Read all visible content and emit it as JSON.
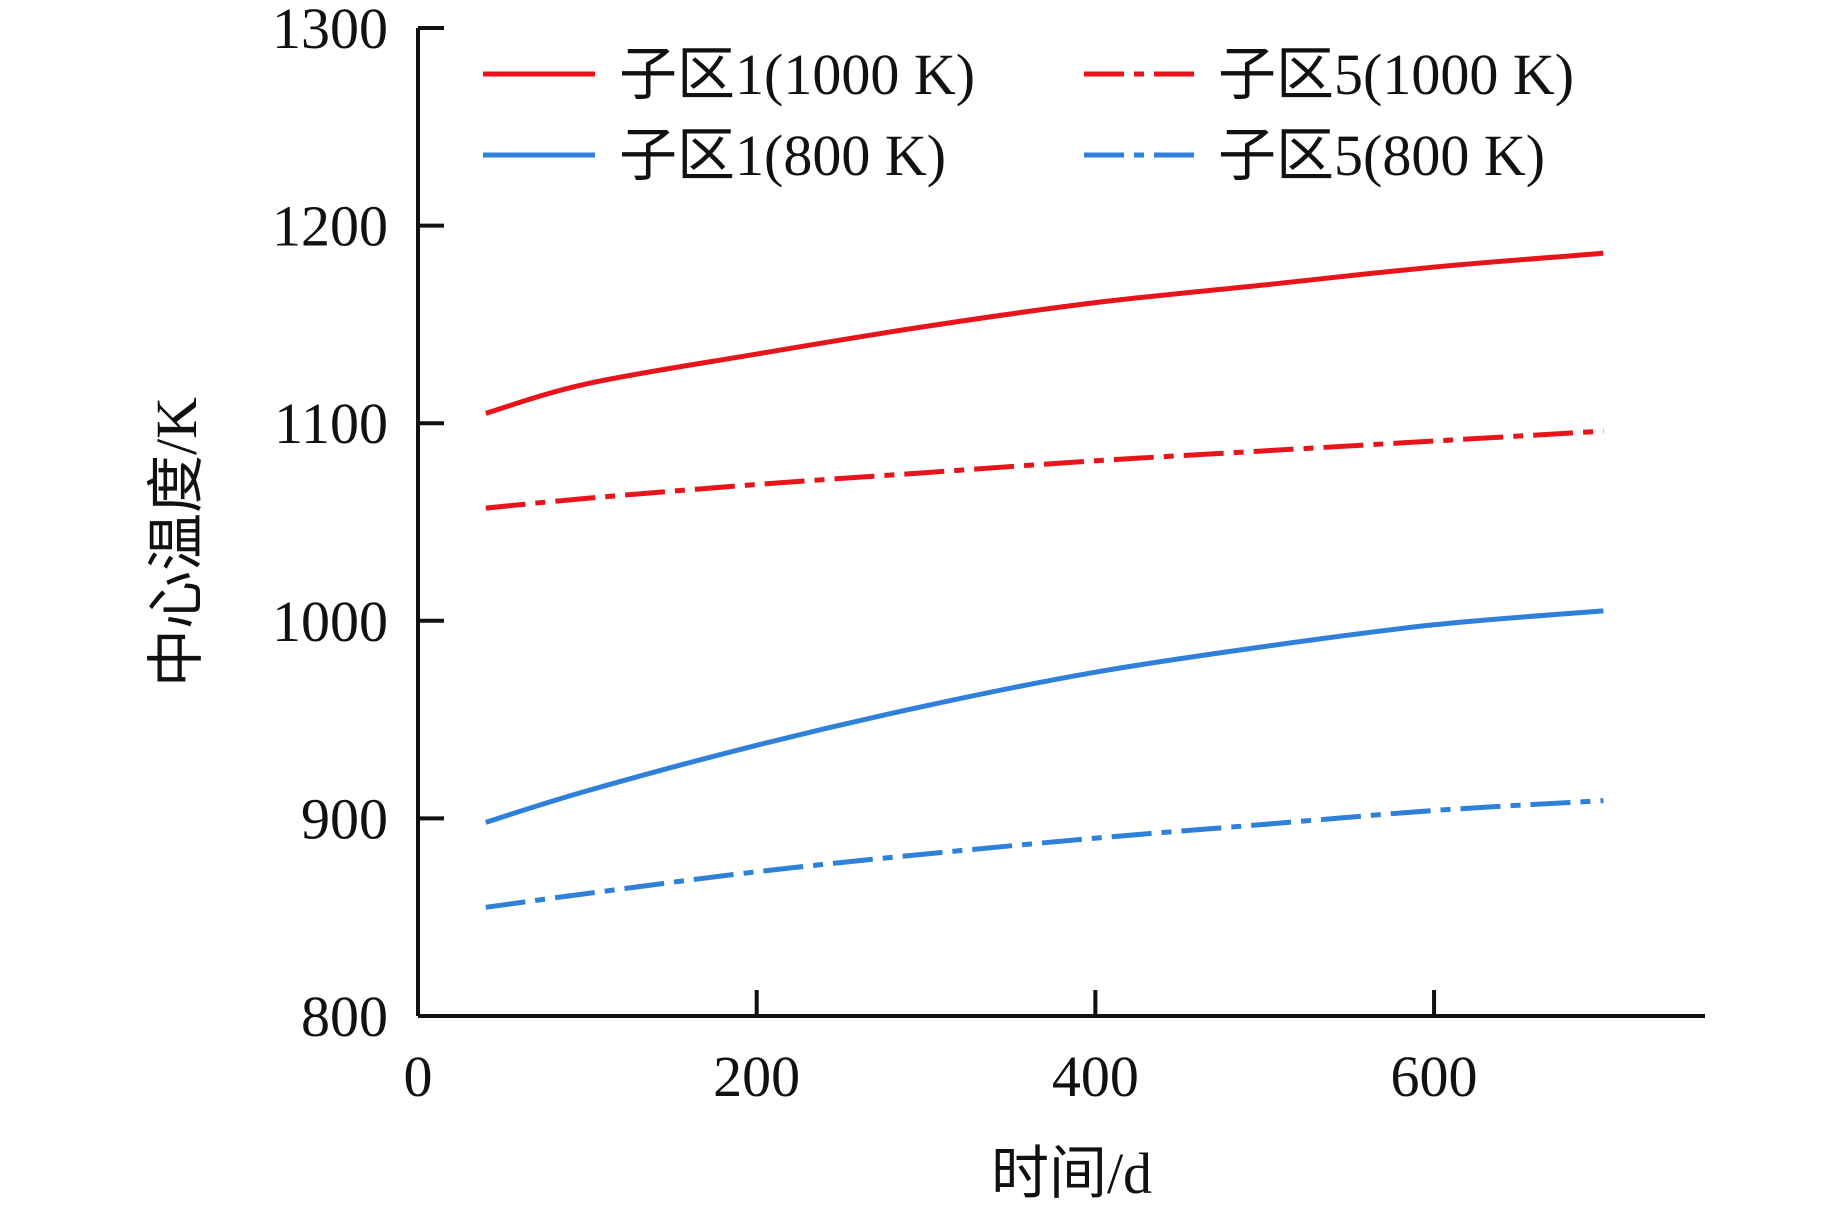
{
  "chart_data": {
    "type": "line",
    "title": "",
    "xlabel": "时间/d",
    "ylabel": "中心温度/K",
    "xlim": [
      0,
      760
    ],
    "ylim": [
      800,
      1300
    ],
    "xticks": [
      0,
      200,
      400,
      600
    ],
    "yticks": [
      800,
      900,
      1000,
      1100,
      1200,
      1300
    ],
    "legend_position": "top",
    "series": [
      {
        "name": "子区1(1000 K)",
        "color": "#e8141c",
        "style": "solid",
        "x": [
          40,
          100,
          200,
          300,
          400,
          500,
          600,
          700
        ],
        "y": [
          1105,
          1120,
          1135,
          1149,
          1161,
          1170,
          1179,
          1186
        ]
      },
      {
        "name": "子区5(1000 K)",
        "color": "#e8141c",
        "style": "dashed",
        "x": [
          40,
          100,
          200,
          300,
          400,
          500,
          600,
          700
        ],
        "y": [
          1057,
          1062,
          1069,
          1075,
          1081,
          1086,
          1091,
          1096
        ]
      },
      {
        "name": "子区1(800 K)",
        "color": "#2f80d8",
        "style": "solid",
        "x": [
          40,
          100,
          200,
          300,
          400,
          500,
          600,
          700
        ],
        "y": [
          898,
          914,
          937,
          957,
          974,
          987,
          998,
          1005
        ]
      },
      {
        "name": "子区5(800 K)",
        "color": "#2f80d8",
        "style": "dashed",
        "x": [
          40,
          100,
          200,
          300,
          400,
          500,
          600,
          700
        ],
        "y": [
          855,
          862,
          873,
          882,
          890,
          897,
          904,
          909
        ]
      }
    ]
  }
}
